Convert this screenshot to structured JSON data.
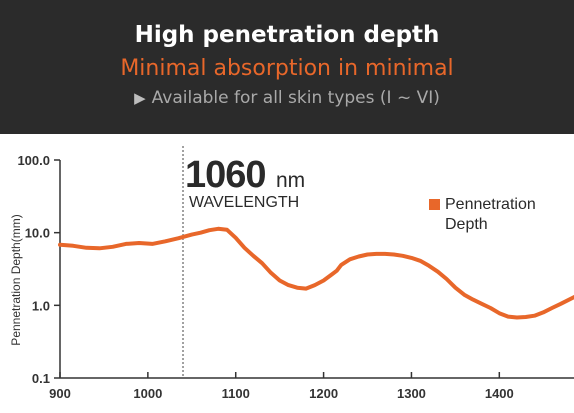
{
  "banner": {
    "title": "High penetration depth",
    "subtitle": "Minimal absorption in minimal",
    "note": "Available for all skin types (I ~ VI)",
    "note_icon": "play-triangle-icon"
  },
  "colors": {
    "banner_bg": "#2b2b2b",
    "accent": "#e8672a",
    "axis": "#333333",
    "text": "#222222"
  },
  "chart_data": {
    "type": "line",
    "ylabel": "Pennetration Depth(mm)",
    "xlabel": "",
    "yscale": "log",
    "xlim": [
      900,
      1485
    ],
    "ylim": [
      0.1,
      100
    ],
    "xticks": [
      "900",
      "1000",
      "1100",
      "1200",
      "1300",
      "1400"
    ],
    "yticks": [
      "100.0",
      "10.0",
      "1.0",
      "0.1"
    ],
    "marker": {
      "value": "1060",
      "unit": "nm",
      "label": "WAVELENGTH"
    },
    "legend": {
      "label": "Pennetration Depth",
      "position": "top-right"
    },
    "series": [
      {
        "name": "Pennetration Depth",
        "x": [
          900,
          915,
          930,
          945,
          960,
          975,
          990,
          1005,
          1020,
          1035,
          1050,
          1060,
          1070,
          1080,
          1090,
          1100,
          1110,
          1120,
          1130,
          1140,
          1150,
          1160,
          1170,
          1180,
          1190,
          1200,
          1210,
          1215,
          1220,
          1230,
          1240,
          1250,
          1260,
          1270,
          1280,
          1290,
          1300,
          1310,
          1320,
          1330,
          1340,
          1350,
          1360,
          1370,
          1380,
          1390,
          1400,
          1410,
          1420,
          1430,
          1440,
          1450,
          1460,
          1470,
          1485
        ],
        "y": [
          6.8,
          6.6,
          6.2,
          6.1,
          6.4,
          7.0,
          7.2,
          7.0,
          7.6,
          8.4,
          9.4,
          10.0,
          10.8,
          11.3,
          11.0,
          8.5,
          6.2,
          4.8,
          3.8,
          2.8,
          2.2,
          1.9,
          1.75,
          1.7,
          1.9,
          2.2,
          2.7,
          3.0,
          3.6,
          4.3,
          4.7,
          5.0,
          5.1,
          5.1,
          5.0,
          4.8,
          4.5,
          4.1,
          3.5,
          2.9,
          2.3,
          1.75,
          1.4,
          1.2,
          1.05,
          0.92,
          0.78,
          0.7,
          0.68,
          0.69,
          0.72,
          0.8,
          0.92,
          1.05,
          1.3
        ]
      }
    ]
  }
}
